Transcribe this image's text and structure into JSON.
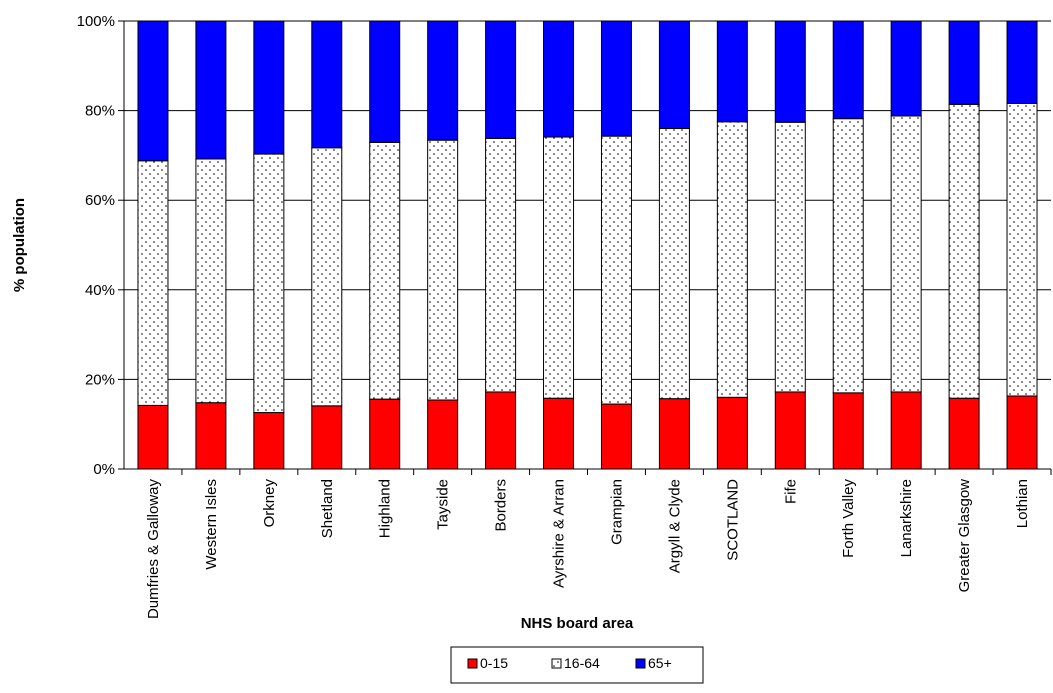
{
  "chart_data": {
    "type": "bar",
    "stacked": "percent",
    "xlabel": "NHS board area",
    "ylabel": "% population",
    "ylim": [
      0,
      100
    ],
    "yticks": [
      "0%",
      "20%",
      "40%",
      "60%",
      "80%",
      "100%"
    ],
    "grid": true,
    "legend_position": "bottom",
    "categories": [
      "Dumfries & Galloway",
      "Western Isles",
      "Orkney",
      "Shetland",
      "Highland",
      "Tayside",
      "Borders",
      "Ayrshire & Arran",
      "Grampian",
      "Argyll & Clyde",
      "SCOTLAND",
      "Fife",
      "Forth Valley",
      "Lanarkshire",
      "Greater Glasgow",
      "Lothian"
    ],
    "series": [
      {
        "name": "0-15",
        "color": "#ff0000",
        "pattern": "solid",
        "values": [
          14.2,
          14.8,
          12.6,
          14.1,
          15.6,
          15.4,
          17.2,
          15.8,
          14.5,
          15.7,
          16.0,
          17.2,
          17.0,
          17.2,
          15.8,
          16.3
        ]
      },
      {
        "name": "16-64",
        "color": "#ffffff",
        "pattern": "dotted",
        "values": [
          54.6,
          54.4,
          57.7,
          57.6,
          57.3,
          58.0,
          56.6,
          58.3,
          59.8,
          60.3,
          61.5,
          60.2,
          61.2,
          61.6,
          65.6,
          65.3
        ]
      },
      {
        "name": "65+",
        "color": "#0000ff",
        "pattern": "solid",
        "values": [
          31.2,
          30.8,
          29.7,
          28.3,
          27.1,
          26.6,
          26.2,
          25.9,
          25.7,
          24.0,
          22.5,
          22.6,
          21.8,
          21.2,
          18.6,
          18.4
        ]
      }
    ]
  }
}
